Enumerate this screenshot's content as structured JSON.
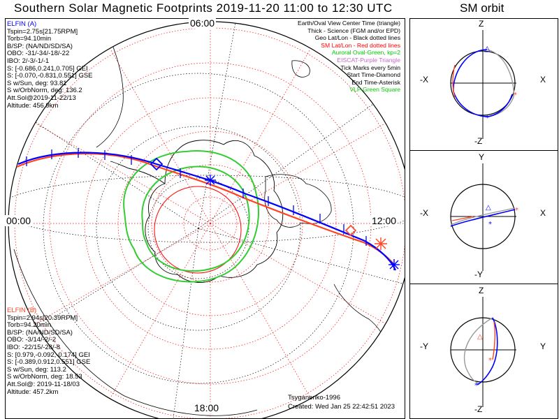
{
  "title": "Southern Solar Magnetic Footprints 2019-11-20 11:00 to 12:30 UTC",
  "orbit_title": "SM orbit",
  "time_labels": {
    "top": "06:00",
    "left": "00:00",
    "right": "12:00",
    "bottom": "18:00"
  },
  "legend": [
    {
      "text": "Earth/Oval View Center Time (triangle)",
      "color": "#000000"
    },
    {
      "text": "Thick - Science (FGM and/or EPD)",
      "color": "#000000"
    },
    {
      "text": "Geo Lat/Lon - Black dotted lines",
      "color": "#000000"
    },
    {
      "text": "SM Lat/Lon - Red dotted lines",
      "color": "#ff0000"
    },
    {
      "text": "Auroral Oval-Green, kp=2",
      "color": "#00cc00"
    },
    {
      "text": "EISCAT-Purple Triangle",
      "color": "#cc66cc"
    },
    {
      "text": "Tick Marks every 5min",
      "color": "#000000"
    },
    {
      "text": "Start Time-Diamond",
      "color": "#000000"
    },
    {
      "text": "End Time-Asterisk",
      "color": "#000000"
    },
    {
      "text": "VLF-Green Square",
      "color": "#00cc00"
    }
  ],
  "elfin_a": {
    "name": "ELFIN (A)",
    "color": "#0000ff",
    "lines": [
      "Tspin=2.75s[21.75RPM]",
      "Torb=94.10min",
      "B/SP: (NA/ND/SD/SA)",
      "OBO: -31/-34/-18/-22",
      "IBO: 2/-3/-1/-1",
      "S: [-0.686,0.241,0.705] GEI",
      "S: [-0.070,-0.831,0.551] GSE",
      "S w/Sun, deg: 93.81",
      "S w/OrbNorm, deg: 136.2",
      "Att.Sol@2019-11-22/13",
      "Altitude: 456.9km"
    ]
  },
  "elfin_b": {
    "name": "ELFIN (B)",
    "color": "#ff4422",
    "lines": [
      "Tspin=2.94s[20.39RPM]",
      "Torb=94.20min",
      "B/SP: (NA/ND/SD/SA)",
      "OBO: -3/14/-2/-2",
      "IBO: -22/15/-28/-8",
      "S: [0.979,-0.092,-0.174] GEI",
      "S: [-0.389,0.912,0.551] GSE",
      "S w/Sun, deg: 113.2",
      "S w/OrbNorm, deg: 18.53",
      "Att.Sol@: 2019-11-18/03",
      "Altitude: 457.2km"
    ]
  },
  "credits": {
    "model": "Tsyganenko-1996",
    "created": "Created: Wed Jan 25 22:42:51 2023"
  },
  "orbit_panels": [
    {
      "top": "Z",
      "bottom": "-Z",
      "left": "-X",
      "right": "X"
    },
    {
      "top": "Y",
      "bottom": "-Y",
      "left": "-X",
      "right": "X"
    },
    {
      "top": "Z",
      "bottom": "-Z",
      "left": "-Y",
      "right": "Y"
    }
  ],
  "colors": {
    "elfin_a": "#0000ff",
    "elfin_b": "#ff4422",
    "sm_grid": "#ff0000",
    "auroral_oval": "#33cc33"
  }
}
